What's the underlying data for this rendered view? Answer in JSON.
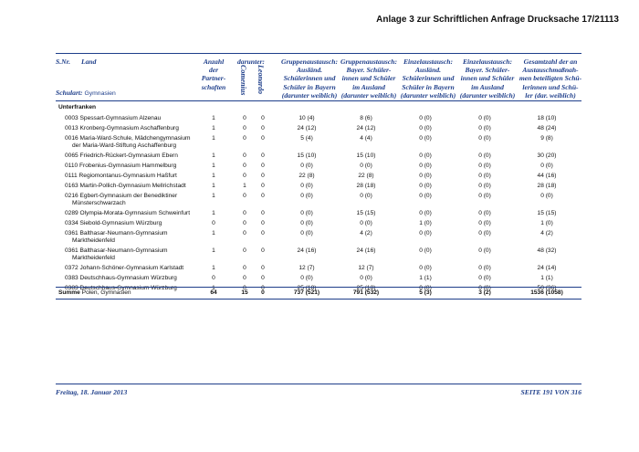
{
  "header": {
    "annex_title": "Anlage 3 zur Schriftlichen Anfrage Drucksache 17/21113"
  },
  "columns": {
    "snr": "S.Nr.",
    "land": "Land",
    "schulart_label": "Schulart:",
    "schulart_value": "Gymnasien",
    "anzahl": [
      "Anzahl",
      "der",
      "Partner-",
      "schaften"
    ],
    "darunter": "darunter:",
    "comenius": "Comenius",
    "leonardo": "Leonardo",
    "gruppen_ausl": [
      "Gruppenaustausch:",
      "Ausländ.",
      "Schülerinnen und",
      "Schüler in Bayern",
      "(darunter weiblich)"
    ],
    "gruppen_bay": [
      "Gruppenaustausch:",
      "Bayer. Schüler-",
      "innen und Schüler",
      "im Ausland",
      "(darunter weiblich)"
    ],
    "einzel_ausl": [
      "Einzelaustausch:",
      "Ausländ.",
      "Schülerinnen und",
      "Schüler in Bayern",
      "(darunter weiblich)"
    ],
    "einzel_bay": [
      "Einzelaustausch:",
      "Bayer. Schüler-",
      "innen und Schüler",
      "im Ausland",
      "(darunter weiblich)"
    ],
    "gesamt": [
      "Gesamtzahl der an",
      "Austauschmaßnah-",
      "men beteiligten Schü-",
      "lerinnen und Schü-",
      "ler (dar. weiblich)"
    ]
  },
  "region": "Unterfranken",
  "rows": [
    {
      "name": [
        "0003 Spessart-Gymnasium Alzenau"
      ],
      "partner": "1",
      "comenius": "0",
      "leonardo": "0",
      "g_ausl": "10 (4)",
      "g_bay": "8 (6)",
      "e_ausl": "0 (0)",
      "e_bay": "0 (0)",
      "gesamt": "18 (10)"
    },
    {
      "name": [
        "0013 Kronberg-Gymnasium Aschaffenburg"
      ],
      "partner": "1",
      "comenius": "0",
      "leonardo": "0",
      "g_ausl": "24 (12)",
      "g_bay": "24 (12)",
      "e_ausl": "0 (0)",
      "e_bay": "0 (0)",
      "gesamt": "48 (24)"
    },
    {
      "name": [
        "0016 Maria-Ward-Schule, Mädchengymnasium",
        "der Maria-Ward-Stiftung Aschaffenburg"
      ],
      "partner": "1",
      "comenius": "0",
      "leonardo": "0",
      "g_ausl": "5 (4)",
      "g_bay": "4 (4)",
      "e_ausl": "0 (0)",
      "e_bay": "0 (0)",
      "gesamt": "9 (8)"
    },
    {
      "name": [
        "0065 Friedrich-Rückert-Gymnasium Ebern"
      ],
      "partner": "1",
      "comenius": "0",
      "leonardo": "0",
      "g_ausl": "15 (10)",
      "g_bay": "15 (10)",
      "e_ausl": "0 (0)",
      "e_bay": "0 (0)",
      "gesamt": "30 (20)"
    },
    {
      "name": [
        "0110 Frobenius-Gymnasium Hammelburg"
      ],
      "partner": "1",
      "comenius": "0",
      "leonardo": "0",
      "g_ausl": "0 (0)",
      "g_bay": "0 (0)",
      "e_ausl": "0 (0)",
      "e_bay": "0 (0)",
      "gesamt": "0 (0)"
    },
    {
      "name": [
        "0111 Regiomontanus-Gymnasium Haßfurt"
      ],
      "partner": "1",
      "comenius": "0",
      "leonardo": "0",
      "g_ausl": "22 (8)",
      "g_bay": "22 (8)",
      "e_ausl": "0 (0)",
      "e_bay": "0 (0)",
      "gesamt": "44 (16)"
    },
    {
      "name": [
        "0163 Martin-Pollich-Gymnasium Mellrichstadt"
      ],
      "partner": "1",
      "comenius": "1",
      "leonardo": "0",
      "g_ausl": "0 (0)",
      "g_bay": "28 (18)",
      "e_ausl": "0 (0)",
      "e_bay": "0 (0)",
      "gesamt": "28 (18)"
    },
    {
      "name": [
        "0216 Egbert-Gymnasium der Benediktiner",
        "Münsterschwarzach"
      ],
      "partner": "1",
      "comenius": "0",
      "leonardo": "0",
      "g_ausl": "0 (0)",
      "g_bay": "0 (0)",
      "e_ausl": "0 (0)",
      "e_bay": "0 (0)",
      "gesamt": "0 (0)"
    },
    {
      "name": [
        "0289 Olympia-Morata-Gymnasium Schweinfurt"
      ],
      "partner": "1",
      "comenius": "0",
      "leonardo": "0",
      "g_ausl": "0 (0)",
      "g_bay": "15 (15)",
      "e_ausl": "0 (0)",
      "e_bay": "0 (0)",
      "gesamt": "15 (15)"
    },
    {
      "name": [
        "0334 Siebold-Gymnasium Würzburg"
      ],
      "partner": "0",
      "comenius": "0",
      "leonardo": "0",
      "g_ausl": "0 (0)",
      "g_bay": "0 (0)",
      "e_ausl": "1 (0)",
      "e_bay": "0 (0)",
      "gesamt": "1 (0)"
    },
    {
      "name": [
        "0361 Balthasar-Neumann-Gymnasium",
        "Marktheidenfeld"
      ],
      "partner": "1",
      "comenius": "0",
      "leonardo": "0",
      "g_ausl": "0 (0)",
      "g_bay": "4 (2)",
      "e_ausl": "0 (0)",
      "e_bay": "0 (0)",
      "gesamt": "4 (2)"
    },
    {
      "name": [
        "0361 Balthasar-Neumann-Gymnasium",
        "Marktheidenfeld"
      ],
      "partner": "1",
      "comenius": "0",
      "leonardo": "0",
      "g_ausl": "24 (16)",
      "g_bay": "24 (16)",
      "e_ausl": "0 (0)",
      "e_bay": "0 (0)",
      "gesamt": "48 (32)"
    },
    {
      "name": [
        "0372 Johann-Schöner-Gymnasium Karlstadt"
      ],
      "partner": "1",
      "comenius": "0",
      "leonardo": "0",
      "g_ausl": "12 (7)",
      "g_bay": "12 (7)",
      "e_ausl": "0 (0)",
      "e_bay": "0 (0)",
      "gesamt": "24 (14)"
    },
    {
      "name": [
        "0383 Deutschhaus-Gymnasium Würzburg"
      ],
      "partner": "0",
      "comenius": "0",
      "leonardo": "0",
      "g_ausl": "0 (0)",
      "g_bay": "0 (0)",
      "e_ausl": "1 (1)",
      "e_bay": "0 (0)",
      "gesamt": "1 (1)"
    },
    {
      "name": [
        "0383 Deutschhaus-Gymnasium Würzburg"
      ],
      "partner": "1",
      "comenius": "0",
      "leonardo": "0",
      "g_ausl": "25 (18)",
      "g_bay": "25 (18)",
      "e_ausl": "0 (0)",
      "e_bay": "0 (0)",
      "gesamt": "50 (36)"
    }
  ],
  "total": {
    "label": "Summe",
    "label_detail": "Polen, Gymnasien",
    "partner": "64",
    "comenius": "15",
    "leonardo": "0",
    "g_ausl": "737 (521)",
    "g_bay": "791 (532)",
    "e_ausl": "5 (3)",
    "e_bay": "3 (2)",
    "gesamt": "1536 (1058)"
  },
  "footer": {
    "date": "Freitag, 18. Januar 2013",
    "page": "SEITE 191 VON 316"
  }
}
